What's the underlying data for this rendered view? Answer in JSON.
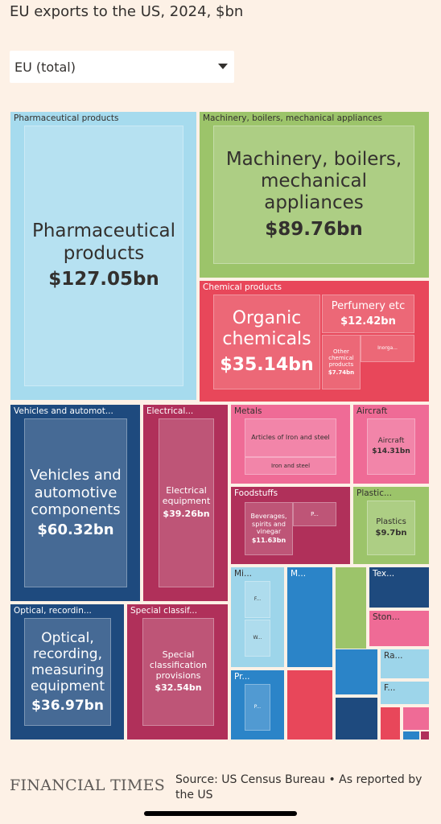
{
  "header": {
    "title": "EU exports to the US, 2024, $bn",
    "dropdown": "EU (total)"
  },
  "chart_data": {
    "type": "treemap",
    "groups": [
      {
        "label": "Pharmaceutical products",
        "color": "#a6dbee",
        "children": [
          {
            "name": "Pharmaceutical products",
            "value": 127.05,
            "value_label": "$127.05bn"
          }
        ]
      },
      {
        "label": "Machinery, boilers, mechanical appliances",
        "color": "#9cc46a",
        "children": [
          {
            "name": "Machinery, boilers, mechanical appliances",
            "value": 89.76,
            "value_label": "$89.76bn"
          }
        ]
      },
      {
        "label": "Chemical products",
        "color": "#e8475a",
        "children": [
          {
            "name": "Organic chemicals",
            "value": 35.14,
            "value_label": "$35.14bn"
          },
          {
            "name": "Perfumery etc",
            "value": 12.42,
            "value_label": "$12.42bn"
          },
          {
            "name": "Other chemical products",
            "value": 7.74,
            "value_label": "$7.74bn"
          },
          {
            "name": "Inorga..."
          }
        ]
      },
      {
        "label": "Vehicles and automot...",
        "color": "#1e4a7e",
        "children": [
          {
            "name": "Vehicles and automotive components",
            "value": 60.32,
            "value_label": "$60.32bn"
          }
        ]
      },
      {
        "label": "Electrical...",
        "color": "#b0305a",
        "children": [
          {
            "name": "Electrical equipment",
            "value": 39.26,
            "value_label": "$39.26bn"
          }
        ]
      },
      {
        "label": "Metals",
        "color": "#ef6b96",
        "children": [
          {
            "name": "Articles of Iron and steel"
          },
          {
            "name": "Iron and steel"
          }
        ]
      },
      {
        "label": "Aircraft",
        "color": "#ef6b96",
        "children": [
          {
            "name": "Aircraft",
            "value": 14.31,
            "value_label": "$14.31bn"
          }
        ]
      },
      {
        "label": "Foodstuffs",
        "color": "#b0305a",
        "children": [
          {
            "name": "Beverages, spirits and vinegar",
            "value": 11.63,
            "value_label": "$11.63bn"
          },
          {
            "name": "P..."
          }
        ]
      },
      {
        "label": "Plastic...",
        "color": "#9cc46a",
        "children": [
          {
            "name": "Plastics",
            "value": 9.7,
            "value_label": "$9.7bn"
          }
        ]
      },
      {
        "label": "Optical, recordin...",
        "color": "#1e4a7e",
        "children": [
          {
            "name": "Optical, recording, measuring equipment",
            "value": 36.97,
            "value_label": "$36.97bn"
          }
        ]
      },
      {
        "label": "Special classif...",
        "color": "#b0305a",
        "children": [
          {
            "name": "Special classification provisions",
            "value": 32.54,
            "value_label": "$32.54bn"
          }
        ]
      },
      {
        "label": "Mi...",
        "color": "#9dd5ea",
        "children": [
          {
            "name": "F..."
          },
          {
            "name": "W..."
          }
        ]
      },
      {
        "label": "M...",
        "color": "#2b84c8",
        "children": []
      },
      {
        "label": "Tex...",
        "color": "#1e4a7e",
        "children": []
      },
      {
        "label": "Ston...",
        "color": "#ef6b96",
        "children": []
      },
      {
        "label": "Pr...",
        "color": "#2b84c8",
        "children": [
          {
            "name": "P..."
          }
        ]
      },
      {
        "label": "Ra...",
        "color": "#9dd5ea",
        "children": []
      },
      {
        "label": "F...",
        "color": "#9dd5ea",
        "children": []
      }
    ]
  },
  "footer": {
    "brand": "FINANCIAL TIMES",
    "source": "Source: US Census Bureau • As reported by the US"
  }
}
